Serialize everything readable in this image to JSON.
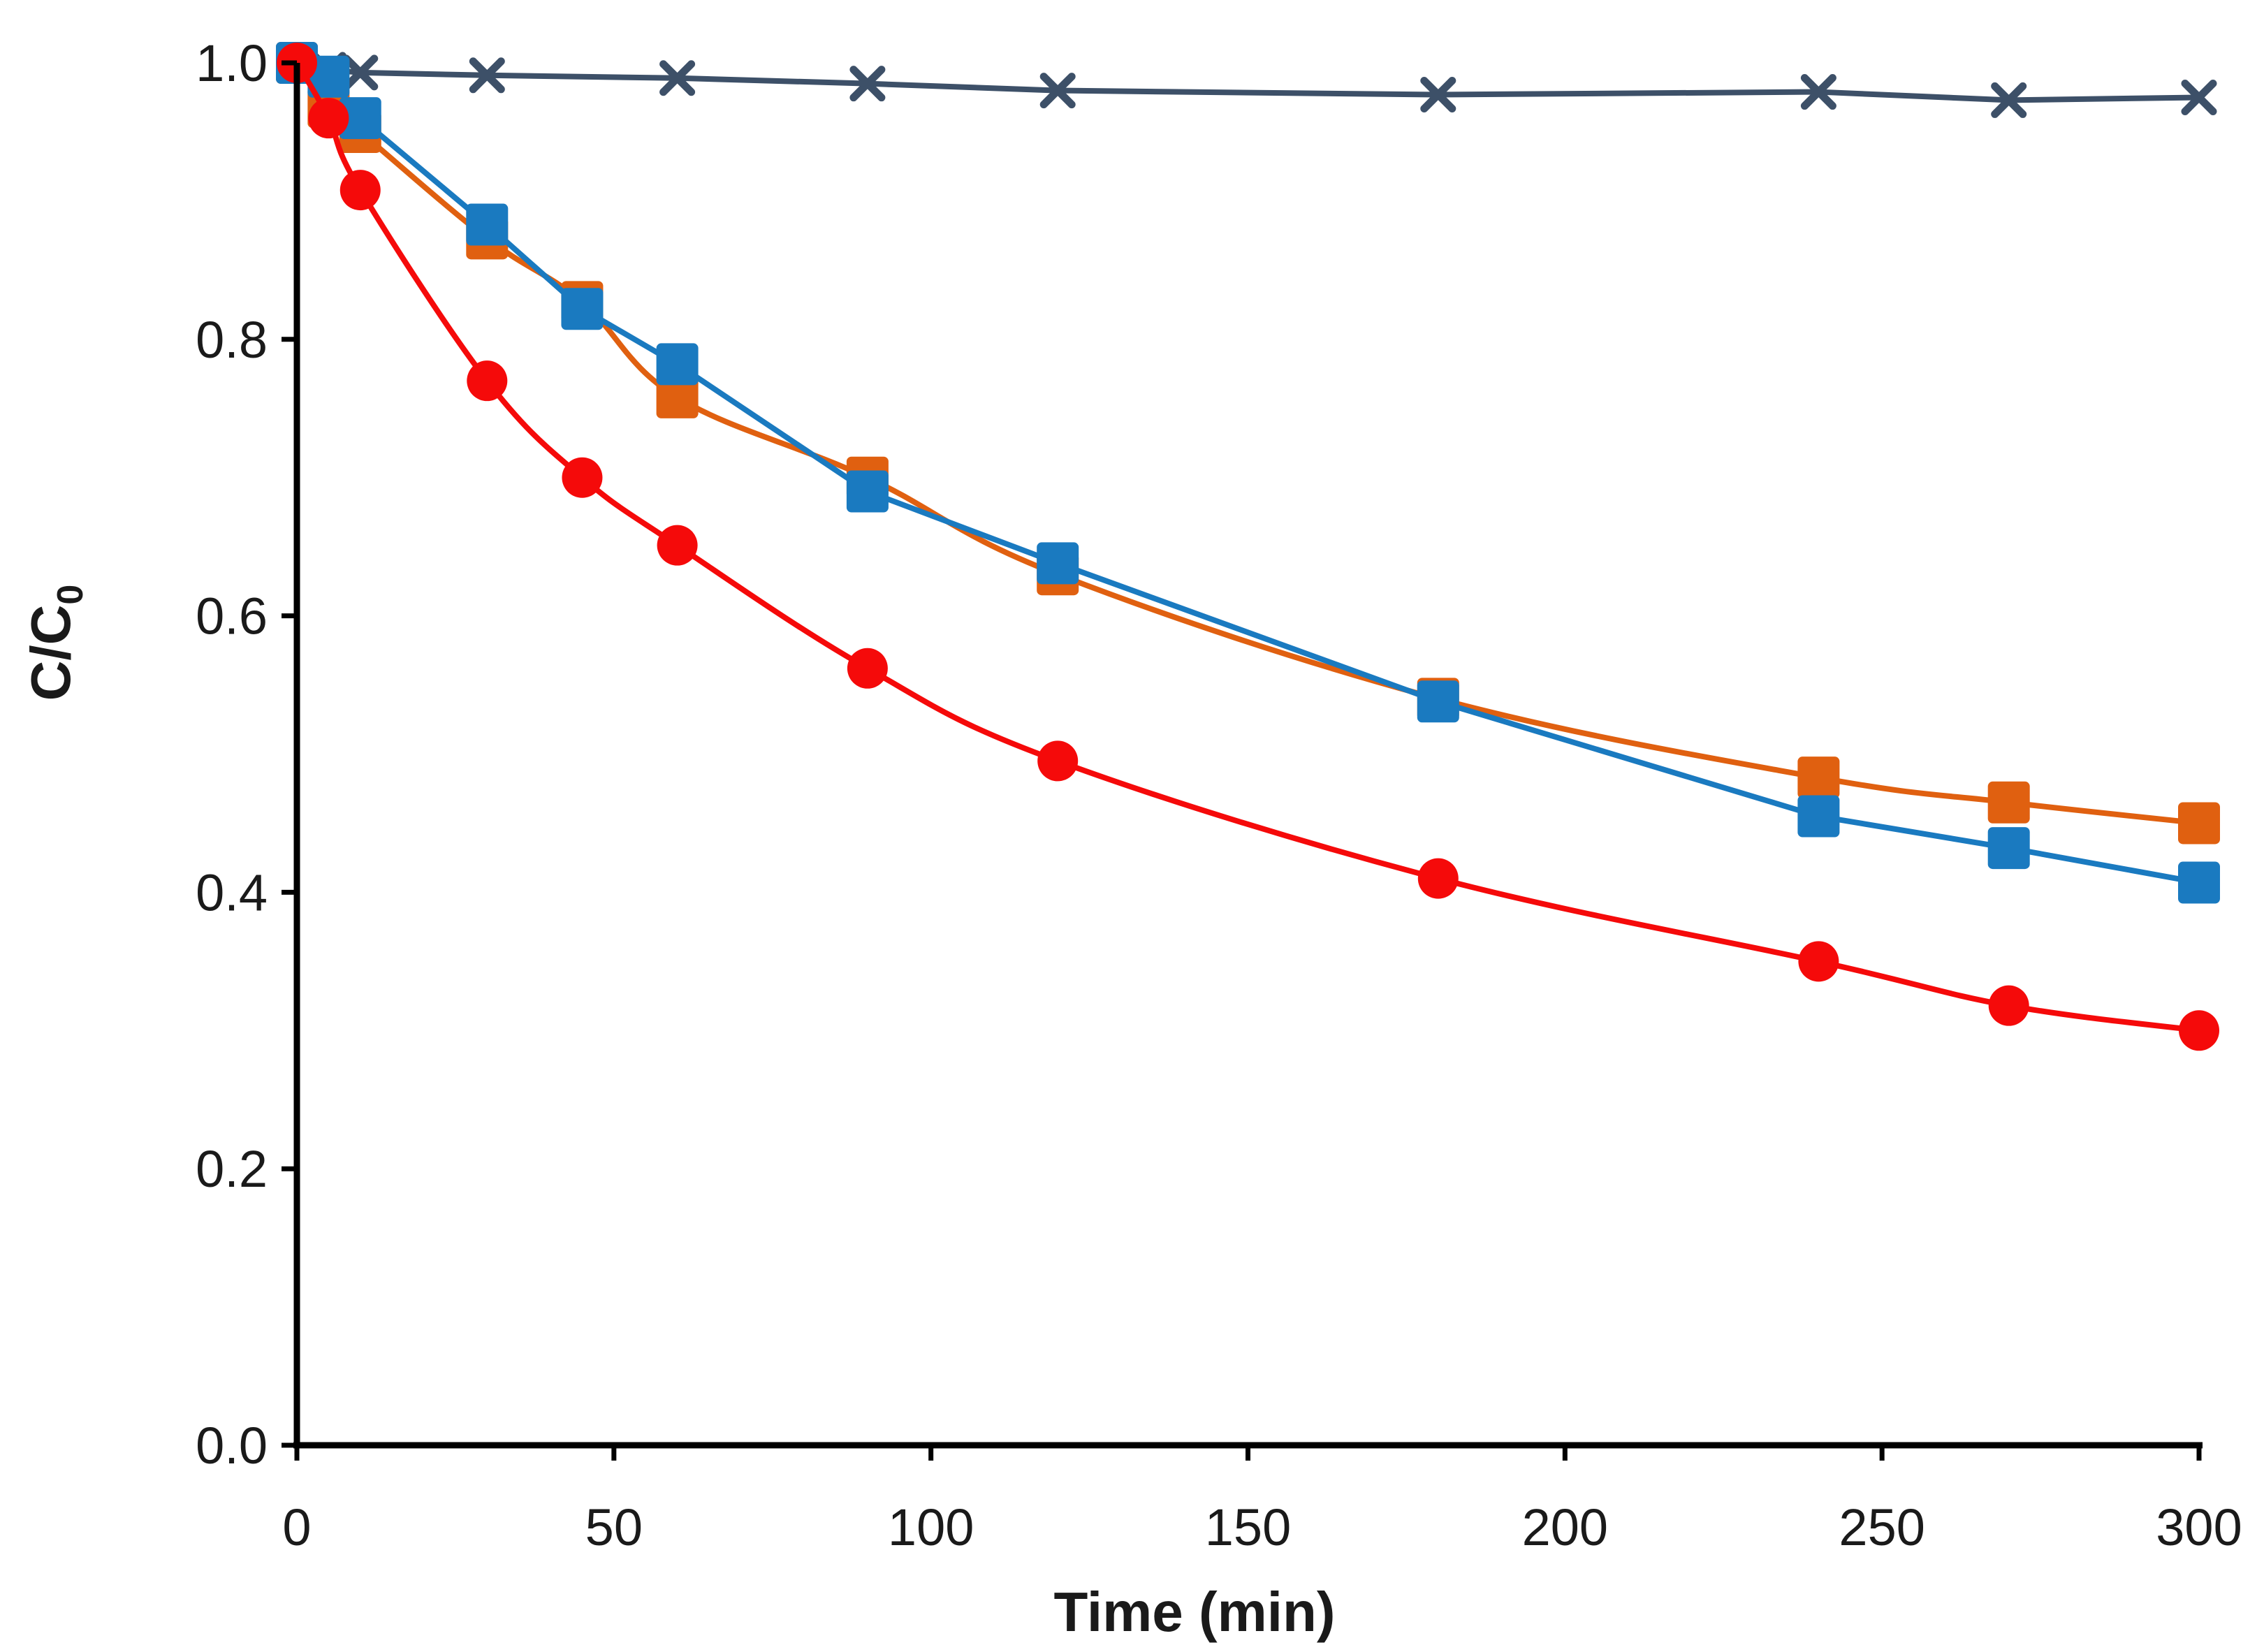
{
  "chart_data": {
    "type": "line",
    "title": "",
    "xlabel": "Time (min)",
    "ylabel_main": "C/C",
    "ylabel_sub": "0",
    "xlim": [
      0,
      300
    ],
    "ylim": [
      0,
      1.0
    ],
    "x_ticks": [
      0,
      50,
      100,
      150,
      200,
      250,
      300
    ],
    "x_tick_labels": [
      "0",
      "50",
      "100",
      "150",
      "200",
      "250",
      "300"
    ],
    "y_ticks": [
      0,
      0.2,
      0.4,
      0.6,
      0.8,
      1.0
    ],
    "y_tick_labels": [
      "0.0",
      "0.2",
      "0.4",
      "0.6",
      "0.8",
      "1.0"
    ],
    "grid": false,
    "legend": "none",
    "series": [
      {
        "name": "series-cross",
        "color": "#3d5068",
        "marker": "cross",
        "smooth": false,
        "x": [
          0,
          5,
          10,
          30,
          60,
          90,
          120,
          180,
          240,
          270,
          300
        ],
        "y": [
          1.0,
          0.995,
          0.993,
          0.991,
          0.989,
          0.985,
          0.98,
          0.977,
          0.979,
          0.973,
          0.975
        ]
      },
      {
        "name": "series-orange-square",
        "color": "#e06010",
        "marker": "square",
        "smooth": true,
        "x": [
          0,
          5,
          10,
          30,
          45,
          60,
          90,
          120,
          180,
          240,
          270,
          300
        ],
        "y": [
          1.0,
          0.968,
          0.95,
          0.873,
          0.827,
          0.758,
          0.7,
          0.63,
          0.54,
          0.483,
          0.465,
          0.45
        ]
      },
      {
        "name": "series-blue-square",
        "color": "#1a7ac0",
        "marker": "square",
        "smooth": false,
        "x": [
          0,
          5,
          10,
          30,
          45,
          60,
          90,
          120,
          180,
          240,
          270,
          300
        ],
        "y": [
          1.0,
          0.99,
          0.96,
          0.883,
          0.822,
          0.782,
          0.69,
          0.638,
          0.538,
          0.455,
          0.432,
          0.407
        ]
      },
      {
        "name": "series-red-circle",
        "color": "#f50a0a",
        "marker": "circle",
        "smooth": true,
        "x": [
          0,
          5,
          10,
          30,
          45,
          60,
          90,
          120,
          180,
          240,
          270,
          300
        ],
        "y": [
          1.0,
          0.96,
          0.908,
          0.77,
          0.7,
          0.651,
          0.562,
          0.495,
          0.41,
          0.35,
          0.318,
          0.3
        ]
      }
    ]
  }
}
